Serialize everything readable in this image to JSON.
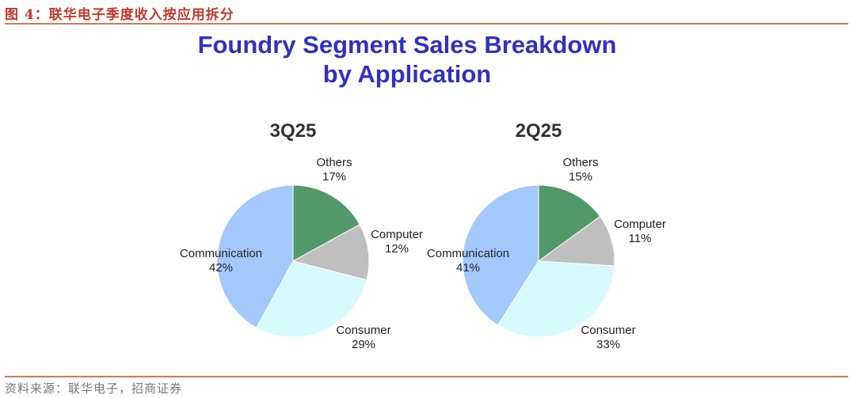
{
  "caption": "图 4：联华电子季度收入按应用拆分",
  "title": {
    "line1": "Foundry Segment Sales Breakdown",
    "line2": "by Application"
  },
  "source": "资料来源：联华电子，招商证券",
  "colors": {
    "others": "#52996a",
    "computer": "#bfbfbf",
    "consumer": "#d6fafd",
    "communication": "#a3c9fb"
  },
  "chart_data": [
    {
      "type": "pie",
      "title": "3Q25",
      "slices": [
        {
          "key": "others",
          "label": "Others",
          "value": 17,
          "display": "17%"
        },
        {
          "key": "computer",
          "label": "Computer",
          "value": 12,
          "display": "12%"
        },
        {
          "key": "consumer",
          "label": "Consumer",
          "value": 29,
          "display": "29%"
        },
        {
          "key": "communication",
          "label": "Communication",
          "value": 42,
          "display": "42%"
        }
      ]
    },
    {
      "type": "pie",
      "title": "2Q25",
      "slices": [
        {
          "key": "others",
          "label": "Others",
          "value": 15,
          "display": "15%"
        },
        {
          "key": "computer",
          "label": "Computer",
          "value": 11,
          "display": "11%"
        },
        {
          "key": "consumer",
          "label": "Consumer",
          "value": 33,
          "display": "33%"
        },
        {
          "key": "communication",
          "label": "Communication",
          "value": 41,
          "display": "41%"
        }
      ]
    }
  ]
}
